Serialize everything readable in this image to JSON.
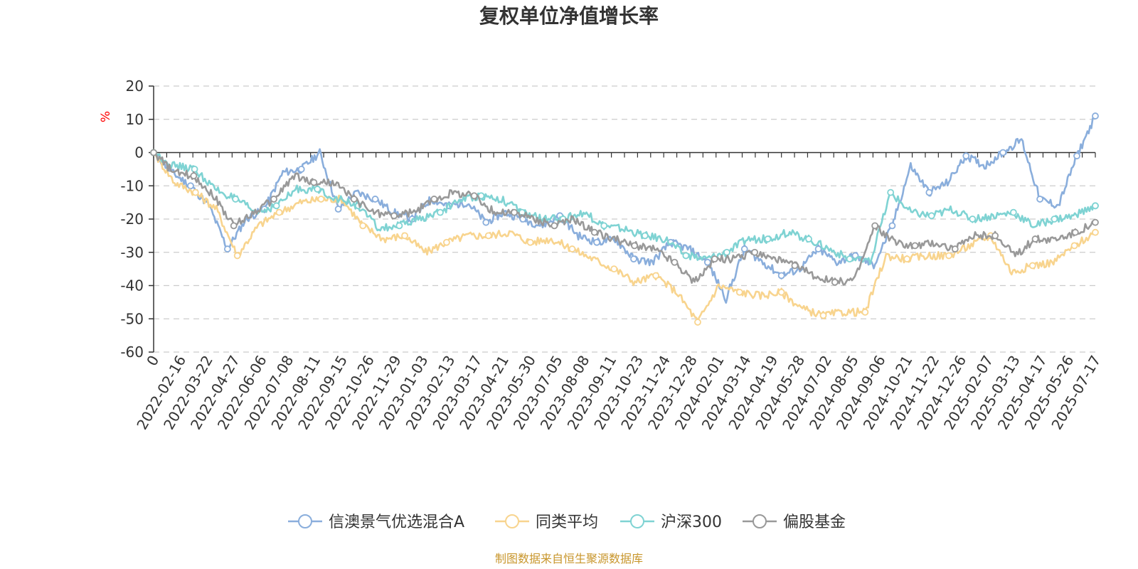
{
  "chart_data": {
    "type": "line",
    "title": "复权单位净值增长率",
    "ylabel": "%",
    "ylim": [
      -60,
      20
    ],
    "yticks": [
      "20",
      "10",
      "0",
      "-10",
      "-20",
      "-30",
      "-40",
      "-50",
      "-60"
    ],
    "xlabels": [
      "0",
      "2022-02-16",
      "2022-03-22",
      "2022-04-27",
      "2022-06-06",
      "2022-07-08",
      "2022-08-11",
      "2022-09-15",
      "2022-10-26",
      "2022-11-29",
      "2023-01-03",
      "2023-02-13",
      "2023-03-17",
      "2023-04-21",
      "2023-05-30",
      "2023-07-05",
      "2023-08-08",
      "2023-09-11",
      "2023-10-23",
      "2023-11-24",
      "2023-12-28",
      "2024-02-01",
      "2024-03-14",
      "2024-04-19",
      "2024-05-28",
      "2024-07-02",
      "2024-08-05",
      "2024-09-06",
      "2024-10-21",
      "2024-11-22",
      "2024-12-26",
      "2025-02-07",
      "2025-03-13",
      "2025-04-17",
      "2025-05-26",
      "2025-07-17"
    ],
    "grid": true,
    "legend_position": "bottom",
    "series": [
      {
        "name": "信澳景气优选混合A",
        "color": "#8aaedc",
        "values": [
          0,
          -6,
          -10,
          -16,
          -29,
          -20,
          -17,
          -6,
          -5,
          0,
          -17,
          -12,
          -14,
          -18,
          -20,
          -14,
          -16,
          -15,
          -21,
          -18,
          -20,
          -22,
          -19,
          -25,
          -27,
          -26,
          -32,
          -33,
          -27,
          -29,
          -33,
          -44,
          -29,
          -33,
          -37,
          -35,
          -29,
          -33,
          -31,
          -34,
          -22,
          -4,
          -12,
          -9,
          -1,
          -4,
          0,
          4,
          -14,
          -16,
          -1,
          11
        ]
      },
      {
        "name": "同类平均",
        "color": "#f8d48e",
        "values": [
          0,
          -9,
          -12,
          -17,
          -31,
          -22,
          -18,
          -15,
          -14,
          -14,
          -22,
          -26,
          -25,
          -30,
          -27,
          -25,
          -25,
          -24,
          -27,
          -26,
          -29,
          -32,
          -35,
          -39,
          -37,
          -42,
          -51,
          -40,
          -42,
          -43,
          -42,
          -47,
          -49,
          -48,
          -48,
          -31,
          -32,
          -31,
          -31,
          -28,
          -25,
          -36,
          -34,
          -33,
          -28,
          -24
        ]
      },
      {
        "name": "沪深300",
        "color": "#7fd3d3",
        "values": [
          0,
          -4,
          -5,
          -11,
          -14,
          -18,
          -16,
          -11,
          -11,
          -14,
          -16,
          -23,
          -22,
          -20,
          -18,
          -14,
          -13,
          -14,
          -18,
          -20,
          -20,
          -18,
          -22,
          -23,
          -25,
          -26,
          -31,
          -32,
          -30,
          -26,
          -26,
          -24,
          -26,
          -29,
          -32,
          -33,
          -12,
          -18,
          -19,
          -17,
          -20,
          -19,
          -18,
          -22,
          -20,
          -19,
          -16
        ]
      },
      {
        "name": "偏股基金",
        "color": "#999999",
        "values": [
          0,
          -6,
          -7,
          -13,
          -22,
          -18,
          -14,
          -7,
          -9,
          -9,
          -14,
          -18,
          -19,
          -18,
          -14,
          -12,
          -13,
          -18,
          -18,
          -20,
          -22,
          -20,
          -24,
          -26,
          -28,
          -29,
          -33,
          -39,
          -32,
          -32,
          -30,
          -32,
          -34,
          -37,
          -39,
          -38,
          -22,
          -27,
          -28,
          -27,
          -29,
          -25,
          -25,
          -31,
          -26,
          -26,
          -24,
          -21
        ]
      }
    ]
  },
  "legend": {
    "items": [
      "信澳景气优选混合A",
      "同类平均",
      "沪深300",
      "偏股基金"
    ]
  },
  "source": "制图数据来自恒生聚源数据库"
}
